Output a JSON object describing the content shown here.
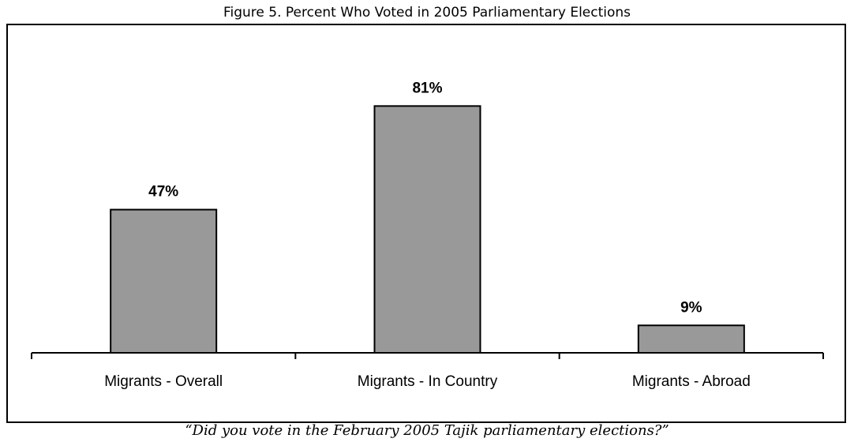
{
  "chart_data": {
    "type": "bar",
    "title": "Figure 5. Percent Who Voted in 2005 Parliamentary Elections",
    "caption": "“Did you vote in the February 2005 Tajik parliamentary elections?”",
    "categories": [
      "Migrants - Overall",
      "Migrants - In Country",
      "Migrants - Abroad"
    ],
    "values": [
      47,
      81,
      9
    ],
    "data_labels": [
      "47%",
      "81%",
      "9%"
    ],
    "ylim": [
      0,
      100
    ],
    "grid": false,
    "bar_color": "#999999",
    "bar_edge_color": "#000000"
  }
}
